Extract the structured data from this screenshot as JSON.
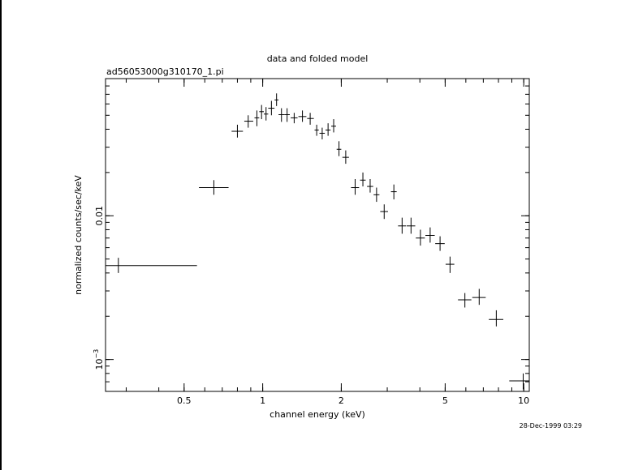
{
  "chart_data": {
    "type": "scatter",
    "title": "data and folded model",
    "subtitle": "ad56053000g310170_1.pi",
    "xlabel": "channel energy (keV)",
    "ylabel": "normalized counts/sec/keV",
    "xscale": "log",
    "yscale": "log",
    "xlim": [
      0.25,
      10.5
    ],
    "ylim": [
      0.0006,
      0.09
    ],
    "x_ticks": [
      {
        "value": 0.5,
        "label": "0.5"
      },
      {
        "value": 1,
        "label": "1"
      },
      {
        "value": 2,
        "label": "2"
      },
      {
        "value": 5,
        "label": "5"
      },
      {
        "value": 10,
        "label": "10"
      }
    ],
    "y_ticks": [
      {
        "value": 0.01,
        "label": "0.01"
      },
      {
        "value": 0.001,
        "label": "10",
        "exponent": "−3"
      }
    ],
    "grid": false,
    "series": [
      {
        "points": [
          {
            "x": 0.28,
            "xlo": 0.25,
            "xhi": 0.56,
            "y": 0.0045,
            "ylo": 0.004,
            "yhi": 0.0051
          },
          {
            "x": 0.65,
            "xlo": 0.57,
            "xhi": 0.74,
            "y": 0.0157,
            "ylo": 0.014,
            "yhi": 0.0177
          },
          {
            "x": 0.8,
            "xlo": 0.76,
            "xhi": 0.84,
            "y": 0.0387,
            "ylo": 0.035,
            "yhi": 0.043
          },
          {
            "x": 0.88,
            "xlo": 0.85,
            "xhi": 0.92,
            "y": 0.0455,
            "ylo": 0.041,
            "yhi": 0.05
          },
          {
            "x": 0.95,
            "xlo": 0.93,
            "xhi": 0.97,
            "y": 0.048,
            "ylo": 0.042,
            "yhi": 0.054
          },
          {
            "x": 0.99,
            "xlo": 0.97,
            "xhi": 1.01,
            "y": 0.053,
            "ylo": 0.047,
            "yhi": 0.059
          },
          {
            "x": 1.03,
            "xlo": 1.01,
            "xhi": 1.05,
            "y": 0.051,
            "ylo": 0.046,
            "yhi": 0.057
          },
          {
            "x": 1.08,
            "xlo": 1.05,
            "xhi": 1.11,
            "y": 0.056,
            "ylo": 0.05,
            "yhi": 0.063
          },
          {
            "x": 1.13,
            "xlo": 1.11,
            "xhi": 1.15,
            "y": 0.064,
            "ylo": 0.058,
            "yhi": 0.071
          },
          {
            "x": 1.18,
            "xlo": 1.15,
            "xhi": 1.21,
            "y": 0.0505,
            "ylo": 0.045,
            "yhi": 0.056
          },
          {
            "x": 1.24,
            "xlo": 1.21,
            "xhi": 1.27,
            "y": 0.0505,
            "ylo": 0.045,
            "yhi": 0.056
          },
          {
            "x": 1.32,
            "xlo": 1.28,
            "xhi": 1.36,
            "y": 0.048,
            "ylo": 0.044,
            "yhi": 0.052
          },
          {
            "x": 1.42,
            "xlo": 1.37,
            "xhi": 1.47,
            "y": 0.049,
            "ylo": 0.045,
            "yhi": 0.054
          },
          {
            "x": 1.52,
            "xlo": 1.48,
            "xhi": 1.57,
            "y": 0.0475,
            "ylo": 0.043,
            "yhi": 0.052
          },
          {
            "x": 1.61,
            "xlo": 1.58,
            "xhi": 1.64,
            "y": 0.0395,
            "ylo": 0.036,
            "yhi": 0.043
          },
          {
            "x": 1.69,
            "xlo": 1.65,
            "xhi": 1.73,
            "y": 0.0375,
            "ylo": 0.034,
            "yhi": 0.041
          },
          {
            "x": 1.78,
            "xlo": 1.74,
            "xhi": 1.82,
            "y": 0.0395,
            "ylo": 0.036,
            "yhi": 0.044
          },
          {
            "x": 1.87,
            "xlo": 1.83,
            "xhi": 1.91,
            "y": 0.042,
            "ylo": 0.038,
            "yhi": 0.047
          },
          {
            "x": 1.96,
            "xlo": 1.92,
            "xhi": 2.0,
            "y": 0.029,
            "ylo": 0.026,
            "yhi": 0.033
          },
          {
            "x": 2.08,
            "xlo": 2.02,
            "xhi": 2.14,
            "y": 0.0255,
            "ylo": 0.023,
            "yhi": 0.0285
          },
          {
            "x": 2.26,
            "xlo": 2.18,
            "xhi": 2.34,
            "y": 0.0157,
            "ylo": 0.014,
            "yhi": 0.018
          },
          {
            "x": 2.42,
            "xlo": 2.36,
            "xhi": 2.48,
            "y": 0.0177,
            "ylo": 0.016,
            "yhi": 0.02
          },
          {
            "x": 2.58,
            "xlo": 2.51,
            "xhi": 2.65,
            "y": 0.016,
            "ylo": 0.0145,
            "yhi": 0.018
          },
          {
            "x": 2.73,
            "xlo": 2.66,
            "xhi": 2.8,
            "y": 0.014,
            "ylo": 0.0125,
            "yhi": 0.0157
          },
          {
            "x": 2.92,
            "xlo": 2.82,
            "xhi": 3.02,
            "y": 0.0107,
            "ylo": 0.0095,
            "yhi": 0.012
          },
          {
            "x": 3.18,
            "xlo": 3.1,
            "xhi": 3.26,
            "y": 0.0147,
            "ylo": 0.013,
            "yhi": 0.0165
          },
          {
            "x": 3.42,
            "xlo": 3.3,
            "xhi": 3.54,
            "y": 0.0085,
            "ylo": 0.0075,
            "yhi": 0.0097
          },
          {
            "x": 3.7,
            "xlo": 3.56,
            "xhi": 3.84,
            "y": 0.0085,
            "ylo": 0.0075,
            "yhi": 0.0097
          },
          {
            "x": 4.02,
            "xlo": 3.86,
            "xhi": 4.18,
            "y": 0.007,
            "ylo": 0.0062,
            "yhi": 0.008
          },
          {
            "x": 4.38,
            "xlo": 4.2,
            "xhi": 4.56,
            "y": 0.0073,
            "ylo": 0.0065,
            "yhi": 0.0083
          },
          {
            "x": 4.78,
            "xlo": 4.58,
            "xhi": 4.98,
            "y": 0.0064,
            "ylo": 0.0057,
            "yhi": 0.0072
          },
          {
            "x": 5.22,
            "xlo": 5.02,
            "xhi": 5.42,
            "y": 0.0046,
            "ylo": 0.004,
            "yhi": 0.0052
          },
          {
            "x": 5.95,
            "xlo": 5.6,
            "xhi": 6.3,
            "y": 0.0026,
            "ylo": 0.0023,
            "yhi": 0.0029
          },
          {
            "x": 6.75,
            "xlo": 6.35,
            "xhi": 7.15,
            "y": 0.0027,
            "ylo": 0.0024,
            "yhi": 0.0031
          },
          {
            "x": 7.85,
            "xlo": 7.35,
            "xhi": 8.35,
            "y": 0.0019,
            "ylo": 0.0017,
            "yhi": 0.0022
          },
          {
            "x": 9.95,
            "xlo": 8.8,
            "xhi": 10.5,
            "y": 0.00071,
            "ylo": 0.00062,
            "yhi": 0.0008
          }
        ]
      }
    ]
  },
  "timestamp": "28-Dec-1999 03:29"
}
